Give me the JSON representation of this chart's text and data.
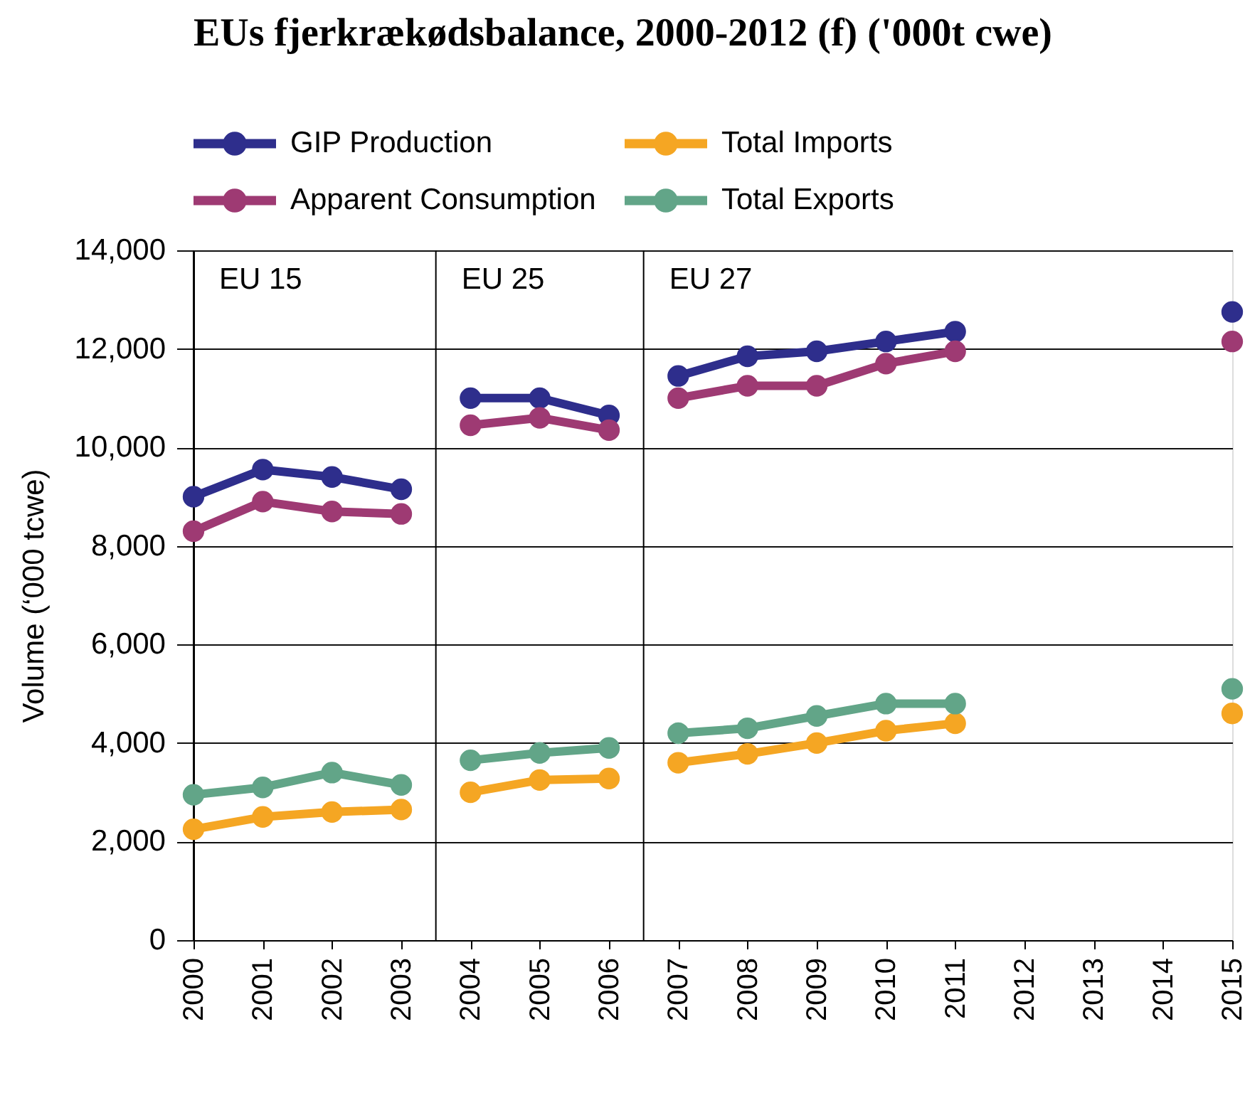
{
  "chart_data": {
    "type": "line",
    "title": "EUs fjerkrækødsbalance, 2000-2012 (f) ('000t cwe)",
    "ylabel": "Volume (‘000 tcwe)",
    "x": [
      2000,
      2001,
      2002,
      2003,
      2004,
      2005,
      2006,
      2007,
      2008,
      2009,
      2010,
      2011,
      2012,
      2013,
      2014,
      2015
    ],
    "xlim": [
      2000,
      2015
    ],
    "xticks": [
      2000,
      2001,
      2002,
      2003,
      2004,
      2005,
      2006,
      2007,
      2008,
      2009,
      2010,
      2011,
      2012,
      2013,
      2014,
      2015
    ],
    "ylim": [
      0,
      14000
    ],
    "yticks": [
      {
        "value": 0,
        "label": "0"
      },
      {
        "value": 2000,
        "label": "2,000"
      },
      {
        "value": 4000,
        "label": "4,000"
      },
      {
        "value": 6000,
        "label": "6,000"
      },
      {
        "value": 8000,
        "label": "8,000"
      },
      {
        "value": 10000,
        "label": "10,000"
      },
      {
        "value": 12000,
        "label": "12,000"
      },
      {
        "value": 14000,
        "label": "14,000"
      }
    ],
    "grid": "y",
    "legend": "top left",
    "marker": "circle",
    "line_style": "solid",
    "ref_lines": [
      {
        "axis": "x",
        "value": 2000,
        "label": "EU 15",
        "color": "#000000"
      },
      {
        "axis": "x",
        "value": 2003.5,
        "label": "EU 25",
        "color": "#000000"
      },
      {
        "axis": "x",
        "value": 2006.5,
        "label": "EU 27",
        "color": "#000000"
      }
    ],
    "series": [
      {
        "name": "GIP Production",
        "color": "#2e2e8c",
        "values": [
          9000,
          9550,
          9400,
          9150,
          11000,
          11000,
          10650,
          11450,
          11850,
          11950,
          12150,
          12350,
          null,
          null,
          null,
          12750
        ]
      },
      {
        "name": "Apparent Consumption",
        "color": "#9e3a73",
        "values": [
          8300,
          8900,
          8700,
          8650,
          10450,
          10600,
          10350,
          11000,
          11250,
          11250,
          11700,
          11950,
          null,
          null,
          null,
          12150
        ]
      },
      {
        "name": "Total Imports",
        "color": "#f5a623",
        "values": [
          2250,
          2500,
          2600,
          2650,
          3000,
          3250,
          3280,
          3600,
          3780,
          4000,
          4250,
          4400,
          null,
          null,
          null,
          4600
        ]
      },
      {
        "name": "Total Exports",
        "color": "#62a588",
        "values": [
          2950,
          3100,
          3400,
          3150,
          3650,
          3800,
          3900,
          4200,
          4300,
          4550,
          4800,
          4800,
          null,
          null,
          null,
          5100
        ]
      }
    ]
  }
}
